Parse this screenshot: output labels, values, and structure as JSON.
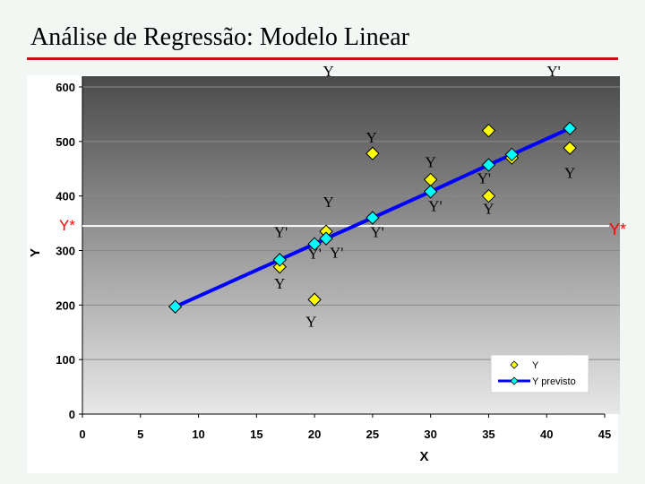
{
  "slide": {
    "title": "Análise de Regressão: Modelo Linear"
  },
  "chart_data": {
    "type": "scatter",
    "title": "",
    "xlabel": "X",
    "ylabel": "Y",
    "xlim": [
      0,
      45
    ],
    "ylim": [
      0,
      600
    ],
    "x_ticks": [
      0,
      5,
      10,
      15,
      20,
      25,
      30,
      35,
      40,
      45
    ],
    "y_ticks": [
      0,
      100,
      200,
      300,
      400,
      500,
      600
    ],
    "grid": "horizontal",
    "legend_position": "bottom-right",
    "colors": {
      "observed": "#ffff00",
      "predicted": "#00ffff",
      "line": "#0000ff",
      "marker_edge": "#000000",
      "reference_line": "#ffffff",
      "red_label": "#ff0000",
      "plot_bg_top": "#4a4a4a",
      "plot_bg_bottom": "#e8e8e8"
    },
    "series": [
      {
        "name": "Y",
        "marker": "diamond",
        "points": [
          {
            "x": 17,
            "y": 270
          },
          {
            "x": 20,
            "y": 210
          },
          {
            "x": 21,
            "y": 335
          },
          {
            "x": 25,
            "y": 478
          },
          {
            "x": 30,
            "y": 430
          },
          {
            "x": 35,
            "y": 520
          },
          {
            "x": 35,
            "y": 400
          },
          {
            "x": 37,
            "y": 470
          },
          {
            "x": 42,
            "y": 488
          }
        ]
      },
      {
        "name": "Y previsto",
        "marker": "diamond",
        "line": true,
        "points": [
          {
            "x": 8,
            "y": 197
          },
          {
            "x": 17,
            "y": 283
          },
          {
            "x": 20,
            "y": 312
          },
          {
            "x": 21,
            "y": 322
          },
          {
            "x": 25,
            "y": 360
          },
          {
            "x": 30,
            "y": 408
          },
          {
            "x": 35,
            "y": 457
          },
          {
            "x": 37,
            "y": 476
          },
          {
            "x": 42,
            "y": 524
          }
        ]
      }
    ],
    "reference_line": {
      "y": 345,
      "label": "Y*"
    },
    "annotations": [
      {
        "text": "Y",
        "x": 21.2,
        "y": 620,
        "kind": "serif"
      },
      {
        "text": "Y'",
        "x": 40.6,
        "y": 620,
        "kind": "serif"
      },
      {
        "text": "Y",
        "x": 24.9,
        "y": 498,
        "kind": "serif"
      },
      {
        "text": "Y",
        "x": 30.0,
        "y": 453,
        "kind": "serif"
      },
      {
        "text": "Y'",
        "x": 34.6,
        "y": 423,
        "kind": "serif"
      },
      {
        "text": "Y",
        "x": 42.0,
        "y": 433,
        "kind": "serif"
      },
      {
        "text": "Y",
        "x": 21.2,
        "y": 380,
        "kind": "serif"
      },
      {
        "text": "Y'",
        "x": 30.4,
        "y": 372,
        "kind": "serif"
      },
      {
        "text": "Y",
        "x": 35.0,
        "y": 367,
        "kind": "serif"
      },
      {
        "text": "Y'",
        "x": 17.1,
        "y": 325,
        "kind": "serif"
      },
      {
        "text": "Y'",
        "x": 25.4,
        "y": 325,
        "kind": "serif"
      },
      {
        "text": "Y'",
        "x": 20.0,
        "y": 285,
        "kind": "serif"
      },
      {
        "text": "Y'",
        "x": 21.9,
        "y": 287,
        "kind": "serif"
      },
      {
        "text": "Y",
        "x": 17.0,
        "y": 230,
        "kind": "serif"
      },
      {
        "text": "Y",
        "x": 19.7,
        "y": 160,
        "kind": "serif"
      }
    ],
    "legend": [
      {
        "label": "Y",
        "color": "#ffff00"
      },
      {
        "label": "Y previsto",
        "color": "#00ffff"
      }
    ]
  }
}
